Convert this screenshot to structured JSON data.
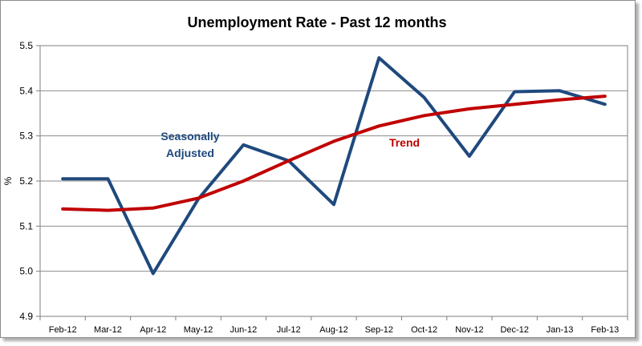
{
  "chart_data": {
    "type": "line",
    "title": "Unemployment Rate - Past 12 months",
    "ylabel": "%",
    "xlabel": "",
    "ylim": [
      4.9,
      5.5
    ],
    "yticks": [
      "4.9",
      "5.0",
      "5.1",
      "5.2",
      "5.3",
      "5.4",
      "5.5"
    ],
    "grid": true,
    "categories": [
      "Feb-12",
      "Mar-12",
      "Apr-12",
      "May-12",
      "Jun-12",
      "Jul-12",
      "Aug-12",
      "Sep-12",
      "Oct-12",
      "Nov-12",
      "Dec-12",
      "Jan-13",
      "Feb-13"
    ],
    "series": [
      {
        "name": "Seasonally Adjusted",
        "color": "#1f497d",
        "values": [
          5.205,
          5.205,
          4.995,
          5.16,
          5.28,
          5.245,
          5.148,
          5.473,
          5.385,
          5.255,
          5.398,
          5.4,
          5.37
        ]
      },
      {
        "name": "Trend",
        "color": "#c00000",
        "values": [
          5.138,
          5.135,
          5.14,
          5.162,
          5.2,
          5.245,
          5.288,
          5.322,
          5.345,
          5.36,
          5.37,
          5.38,
          5.388
        ]
      }
    ],
    "annotations": [
      {
        "text": "Seasonally",
        "color": "#1f497d"
      },
      {
        "text": "Adjusted",
        "color": "#1f497d"
      },
      {
        "text": "Trend",
        "color": "#c00000"
      }
    ]
  }
}
